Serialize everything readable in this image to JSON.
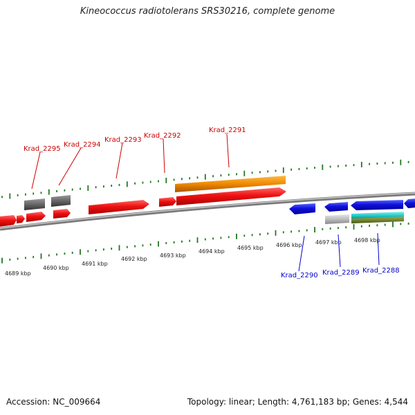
{
  "title": "Kineococcus radiotolerans SRS30216, complete genome",
  "footer": {
    "accession": "Accession: NC_009664",
    "summary": "Topology: linear; Length: 4,761,183 bp; Genes: 4,544"
  },
  "colors": {
    "forward_label": "#cc0000",
    "reverse_label": "#0000cc",
    "red_gene": "#ee1111",
    "blue_gene": "#1111dd",
    "orange_gene": "#ee8800",
    "dark_gray_gene": "#666666",
    "light_gray_gene": "#bbbbbb",
    "cyan_gene": "#22cccc",
    "olive_gene": "#778833",
    "tick": "#227722",
    "backbone": "#808080"
  },
  "axis": {
    "unit": "kbp",
    "tick_labels": [
      "4689 kbp",
      "4690 kbp",
      "4691 kbp",
      "4692 kbp",
      "4693 kbp",
      "4694 kbp",
      "4695 kbp",
      "4696 kbp",
      "4697 kbp",
      "4698 kbp"
    ]
  },
  "gene_labels": {
    "forward": [
      "Krad_2295",
      "Krad_2294",
      "Krad_2293",
      "Krad_2292",
      "Krad_2291"
    ],
    "reverse": [
      "Krad_2290",
      "Krad_2289",
      "Krad_2288"
    ]
  }
}
